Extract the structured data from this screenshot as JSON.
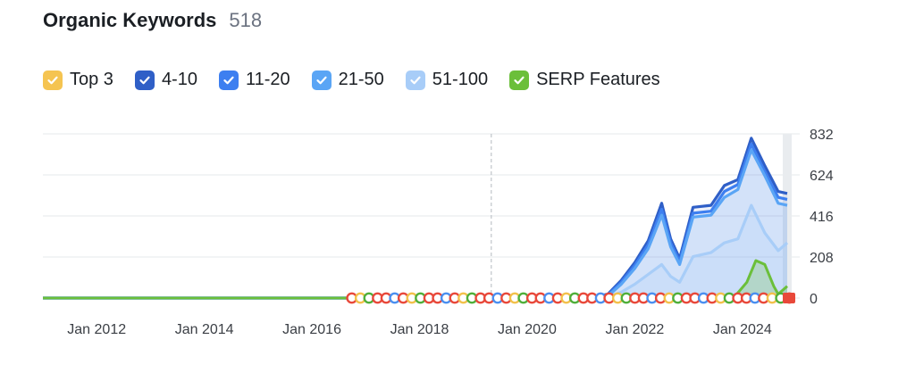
{
  "header": {
    "title": "Organic Keywords",
    "count": "518"
  },
  "legend": [
    {
      "label": "Top 3",
      "color": "#f5c451",
      "icon": "check-icon"
    },
    {
      "label": "4-10",
      "color": "#2f5fc7",
      "icon": "check-icon"
    },
    {
      "label": "11-20",
      "color": "#3d7ff0",
      "icon": "check-icon"
    },
    {
      "label": "21-50",
      "color": "#5aa5f5",
      "icon": "check-icon"
    },
    {
      "label": "51-100",
      "color": "#a8cdf8",
      "icon": "check-icon"
    },
    {
      "label": "SERP Features",
      "color": "#6bbf3a",
      "icon": "check-icon"
    }
  ],
  "chart_data": {
    "type": "area",
    "xlim": [
      "2011-01",
      "2024-12"
    ],
    "ylim": [
      0,
      832
    ],
    "yticks": [
      "832",
      "624",
      "416",
      "208",
      "0"
    ],
    "xticks": [
      "Jan 2012",
      "Jan 2014",
      "Jan 2016",
      "Jan 2018",
      "Jan 2020",
      "Jan 2022",
      "Jan 2024"
    ],
    "grid": true,
    "series": [
      {
        "name": "4-10",
        "color": "#2f5fc7",
        "points": [
          [
            "2011-01",
            0
          ],
          [
            "2021-03",
            0
          ],
          [
            "2021-07",
            20
          ],
          [
            "2021-10",
            90
          ],
          [
            "2022-01",
            180
          ],
          [
            "2022-04",
            290
          ],
          [
            "2022-07",
            480
          ],
          [
            "2022-09",
            300
          ],
          [
            "2022-11",
            200
          ],
          [
            "2023-02",
            460
          ],
          [
            "2023-06",
            470
          ],
          [
            "2023-09",
            570
          ],
          [
            "2023-12",
            600
          ],
          [
            "2024-03",
            810
          ],
          [
            "2024-06",
            670
          ],
          [
            "2024-09",
            540
          ],
          [
            "2024-11",
            530
          ]
        ]
      },
      {
        "name": "11-20",
        "color": "#3d7ff0",
        "points": [
          [
            "2011-01",
            0
          ],
          [
            "2021-03",
            0
          ],
          [
            "2021-07",
            15
          ],
          [
            "2021-10",
            80
          ],
          [
            "2022-01",
            165
          ],
          [
            "2022-04",
            270
          ],
          [
            "2022-07",
            450
          ],
          [
            "2022-09",
            280
          ],
          [
            "2022-11",
            185
          ],
          [
            "2023-02",
            430
          ],
          [
            "2023-06",
            440
          ],
          [
            "2023-09",
            540
          ],
          [
            "2023-12",
            575
          ],
          [
            "2024-03",
            780
          ],
          [
            "2024-06",
            640
          ],
          [
            "2024-09",
            510
          ],
          [
            "2024-11",
            500
          ]
        ]
      },
      {
        "name": "21-50",
        "color": "#5aa5f5",
        "points": [
          [
            "2011-01",
            0
          ],
          [
            "2021-03",
            0
          ],
          [
            "2021-07",
            10
          ],
          [
            "2021-10",
            70
          ],
          [
            "2022-01",
            150
          ],
          [
            "2022-04",
            250
          ],
          [
            "2022-07",
            420
          ],
          [
            "2022-09",
            260
          ],
          [
            "2022-11",
            170
          ],
          [
            "2023-02",
            410
          ],
          [
            "2023-06",
            420
          ],
          [
            "2023-09",
            510
          ],
          [
            "2023-12",
            550
          ],
          [
            "2024-03",
            750
          ],
          [
            "2024-06",
            620
          ],
          [
            "2024-09",
            480
          ],
          [
            "2024-11",
            470
          ]
        ]
      },
      {
        "name": "51-100",
        "color": "#a8cdf8",
        "points": [
          [
            "2011-01",
            0
          ],
          [
            "2021-03",
            0
          ],
          [
            "2021-07",
            5
          ],
          [
            "2021-10",
            30
          ],
          [
            "2022-01",
            70
          ],
          [
            "2022-04",
            120
          ],
          [
            "2022-07",
            170
          ],
          [
            "2022-09",
            110
          ],
          [
            "2022-11",
            80
          ],
          [
            "2023-02",
            210
          ],
          [
            "2023-06",
            230
          ],
          [
            "2023-09",
            280
          ],
          [
            "2023-12",
            300
          ],
          [
            "2024-03",
            470
          ],
          [
            "2024-06",
            330
          ],
          [
            "2024-09",
            240
          ],
          [
            "2024-11",
            280
          ]
        ]
      },
      {
        "name": "SERP Features",
        "color": "#6bbf3a",
        "points": [
          [
            "2011-01",
            0
          ],
          [
            "2023-11",
            0
          ],
          [
            "2024-02",
            80
          ],
          [
            "2024-04",
            190
          ],
          [
            "2024-06",
            170
          ],
          [
            "2024-08",
            60
          ],
          [
            "2024-09",
            20
          ],
          [
            "2024-11",
            60
          ]
        ]
      }
    ],
    "reference_line_x": "2019-05",
    "event_markers": {
      "start": "2016-09",
      "end": "2024-12"
    }
  }
}
